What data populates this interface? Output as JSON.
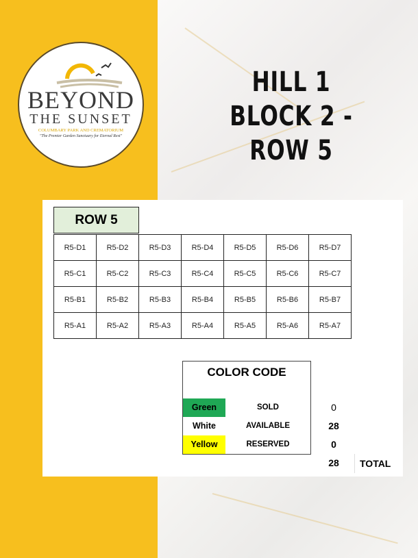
{
  "logo": {
    "name": "BEYOND",
    "name2": "THE SUNSET",
    "subtitle": "COLUMBARY PARK AND CREMATORIUM",
    "tagline": "\"The Premier Garden Sanctuary for Eternal Rest\""
  },
  "header": {
    "line1": "HILL 1",
    "line2": "BLOCK 2 - ROW 5"
  },
  "row_label": "ROW 5",
  "grid": [
    [
      "R5-D1",
      "R5-D2",
      "R5-D3",
      "R5-D4",
      "R5-D5",
      "R5-D6",
      "R5-D7"
    ],
    [
      "R5-C1",
      "R5-C2",
      "R5-C3",
      "R5-C4",
      "R5-C5",
      "R5-C6",
      "R5-C7"
    ],
    [
      "R5-B1",
      "R5-B2",
      "R5-B3",
      "R5-B4",
      "R5-B5",
      "R5-B6",
      "R5-B7"
    ],
    [
      "R5-A1",
      "R5-A2",
      "R5-A3",
      "R5-A4",
      "R5-A5",
      "R5-A6",
      "R5-A7"
    ]
  ],
  "color_code": {
    "title": "COLOR CODE",
    "rows": [
      {
        "color": "Green",
        "hex": "#1fa855",
        "status": "SOLD",
        "count": "0"
      },
      {
        "color": "White",
        "hex": "#ffffff",
        "status": "AVAILABLE",
        "count": "28"
      },
      {
        "color": "Yellow",
        "hex": "#ffff00",
        "status": "RESERVED",
        "count": "0"
      }
    ],
    "total": "28",
    "total_label": "TOTAL"
  },
  "colors": {
    "sidebar": "#f7bf1e",
    "row_header": "#e2efda"
  }
}
